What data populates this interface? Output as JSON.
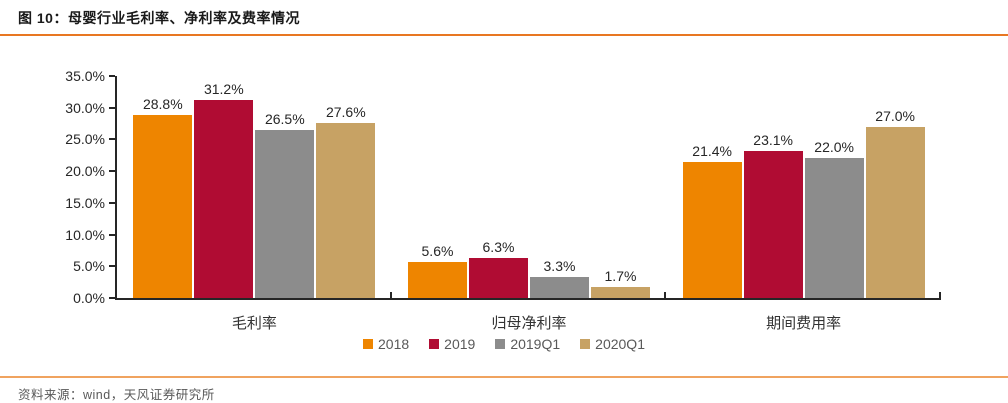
{
  "header": {
    "title": "图 10：母婴行业毛利率、净利率及费率情况"
  },
  "footer": {
    "source": "资料来源：wind，天风证券研究所"
  },
  "colors": {
    "accent_rule_top": "#E87722",
    "accent_rule_bottom": "#F0A35F",
    "axis": "#262626",
    "series_2018": "#EE8500",
    "series_2019": "#B00C33",
    "series_2019q1": "#8C8C8C",
    "series_2020q1": "#C7A264"
  },
  "chart_data": {
    "type": "bar",
    "title": "母婴行业毛利率、净利率及费率情况",
    "categories": [
      "毛利率",
      "归母净利率",
      "期间费用率"
    ],
    "series": [
      {
        "name": "2018",
        "color": "#EE8500",
        "values": [
          28.8,
          5.6,
          21.4
        ]
      },
      {
        "name": "2019",
        "color": "#B00C33",
        "values": [
          31.2,
          6.3,
          23.1
        ]
      },
      {
        "name": "2019Q1",
        "color": "#8C8C8C",
        "values": [
          26.5,
          3.3,
          22.0
        ]
      },
      {
        "name": "2020Q1",
        "color": "#C7A264",
        "values": [
          27.6,
          1.7,
          27.0
        ]
      }
    ],
    "value_label_format": "{value}%",
    "xlabel": "",
    "ylabel": "",
    "ylim": [
      0,
      35
    ],
    "y_tick_step": 5,
    "y_tick_labels": [
      "0.0%",
      "5.0%",
      "10.0%",
      "15.0%",
      "20.0%",
      "25.0%",
      "30.0%",
      "35.0%"
    ],
    "grid": false,
    "legend_position": "bottom"
  }
}
